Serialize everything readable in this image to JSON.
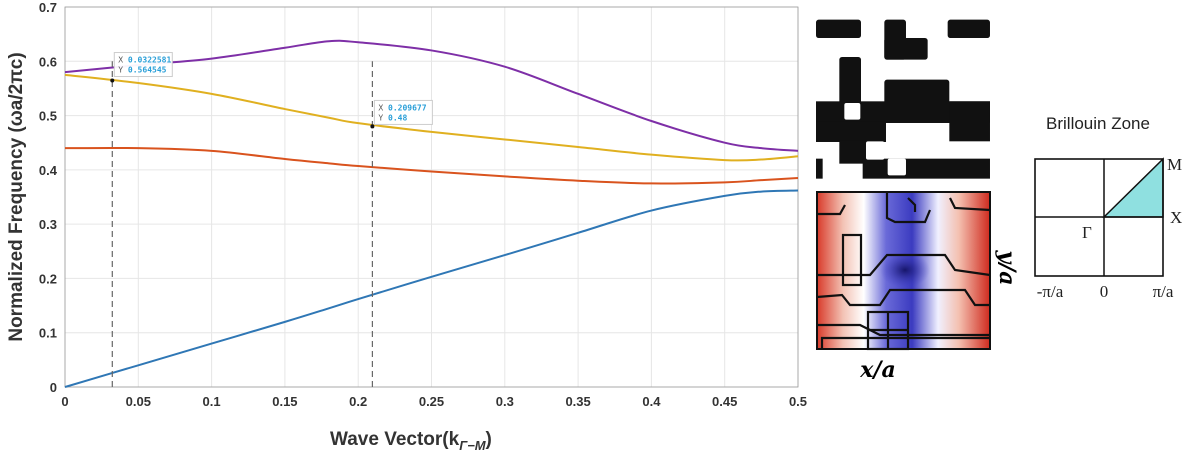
{
  "chart_data": {
    "type": "line",
    "xlabel": "Wave Vector(k",
    "xlabel_sub": "Γ−M",
    "xlabel_close": ")",
    "ylabel": "Normalized Frequency (ωa/2πc)",
    "xlim": [
      0,
      0.5
    ],
    "ylim": [
      0,
      0.7
    ],
    "grid": true,
    "xticks": [
      "0",
      "0.05",
      "0.1",
      "0.15",
      "0.2",
      "0.25",
      "0.3",
      "0.35",
      "0.4",
      "0.45",
      "0.5"
    ],
    "yticks": [
      "0",
      "0.1",
      "0.2",
      "0.3",
      "0.4",
      "0.5",
      "0.6",
      "0.7"
    ],
    "x": [
      0,
      0.05,
      0.1,
      0.15,
      0.18,
      0.2,
      0.25,
      0.3,
      0.35,
      0.4,
      0.45,
      0.475,
      0.5
    ],
    "series": [
      {
        "color": "#2f77b5",
        "values": [
          0,
          0.04,
          0.08,
          0.12,
          0.145,
          0.162,
          0.203,
          0.243,
          0.284,
          0.325,
          0.352,
          0.36,
          0.362
        ]
      },
      {
        "color": "#d9531e",
        "values": [
          0.44,
          0.44,
          0.435,
          0.42,
          0.412,
          0.407,
          0.397,
          0.388,
          0.38,
          0.375,
          0.377,
          0.381,
          0.385
        ]
      },
      {
        "color": "#e0b020",
        "values": [
          0.575,
          0.56,
          0.54,
          0.512,
          0.496,
          0.486,
          0.47,
          0.456,
          0.442,
          0.428,
          0.418,
          0.419,
          0.425
        ]
      },
      {
        "color": "#7e2fa7",
        "values": [
          0.58,
          0.593,
          0.605,
          0.625,
          0.637,
          0.635,
          0.62,
          0.59,
          0.54,
          0.49,
          0.45,
          0.44,
          0.435
        ]
      }
    ],
    "datatips": [
      {
        "x_label": "X",
        "x": "0.0322581",
        "y_label": "Y",
        "y": "0.564545",
        "xv": 0.0322581,
        "yv": 0.564545,
        "ytop": 0.6
      },
      {
        "x_label": "X",
        "x": "0.209677",
        "y_label": "Y",
        "y": "0.48",
        "xv": 0.209677,
        "yv": 0.48,
        "ytop": 0.6
      }
    ]
  },
  "field_plot": {
    "xlabel": "x/a",
    "ylabel": "y/a"
  },
  "brillouin": {
    "title": "Brillouin Zone",
    "labels": {
      "M": "M",
      "X": "X",
      "Gamma": "Γ",
      "neg": "-π/a",
      "zero": "0",
      "pos": "π/a"
    },
    "fill": "#8fe0e0"
  }
}
